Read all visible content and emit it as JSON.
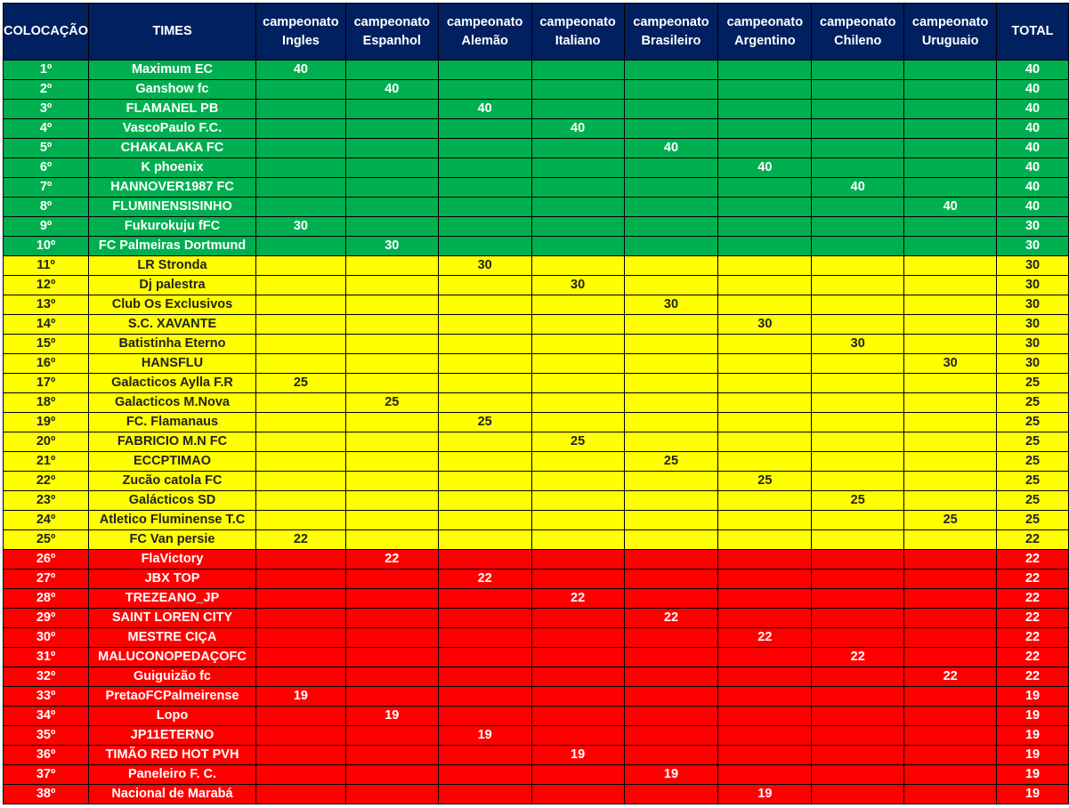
{
  "headers": [
    "COLOCAÇÃO",
    "TIMES",
    "campeonato Ingles",
    "campeonato Espanhol",
    "campeonato Alemão",
    "campeonato Italiano",
    "campeonato Brasileiro",
    "campeonato Argentino",
    "campeonato Chileno",
    "campeonato Uruguaio",
    "TOTAL"
  ],
  "colors": {
    "header": "#002060",
    "green": "#00B050",
    "yellow": "#FFFF00",
    "red": "#FF0000"
  },
  "rows": [
    {
      "pos": "1º",
      "team": "Maximum EC",
      "scores": [
        "40",
        "",
        "",
        "",
        "",
        "",
        "",
        ""
      ],
      "total": "40",
      "zone": "green"
    },
    {
      "pos": "2º",
      "team": "Ganshow fc",
      "scores": [
        "",
        "40",
        "",
        "",
        "",
        "",
        "",
        ""
      ],
      "total": "40",
      "zone": "green"
    },
    {
      "pos": "3º",
      "team": "FLAMANEL PB",
      "scores": [
        "",
        "",
        "40",
        "",
        "",
        "",
        "",
        ""
      ],
      "total": "40",
      "zone": "green"
    },
    {
      "pos": "4º",
      "team": "VascoPaulo F.C.",
      "scores": [
        "",
        "",
        "",
        "40",
        "",
        "",
        "",
        ""
      ],
      "total": "40",
      "zone": "green"
    },
    {
      "pos": "5º",
      "team": "CHAKALAKA FC",
      "scores": [
        "",
        "",
        "",
        "",
        "40",
        "",
        "",
        ""
      ],
      "total": "40",
      "zone": "green"
    },
    {
      "pos": "6º",
      "team": "K phoenix",
      "scores": [
        "",
        "",
        "",
        "",
        "",
        "40",
        "",
        ""
      ],
      "total": "40",
      "zone": "green"
    },
    {
      "pos": "7º",
      "team": "HANNOVER1987 FC",
      "scores": [
        "",
        "",
        "",
        "",
        "",
        "",
        "40",
        ""
      ],
      "total": "40",
      "zone": "green"
    },
    {
      "pos": "8º",
      "team": "FLUMINENSISINHO",
      "scores": [
        "",
        "",
        "",
        "",
        "",
        "",
        "",
        "40"
      ],
      "total": "40",
      "zone": "green"
    },
    {
      "pos": "9º",
      "team": "Fukurokuju fFC",
      "scores": [
        "30",
        "",
        "",
        "",
        "",
        "",
        "",
        ""
      ],
      "total": "30",
      "zone": "green"
    },
    {
      "pos": "10º",
      "team": "FC Palmeiras Dortmund",
      "scores": [
        "",
        "30",
        "",
        "",
        "",
        "",
        "",
        ""
      ],
      "total": "30",
      "zone": "green"
    },
    {
      "pos": "11º",
      "team": "LR Stronda",
      "scores": [
        "",
        "",
        "30",
        "",
        "",
        "",
        "",
        ""
      ],
      "total": "30",
      "zone": "yellow"
    },
    {
      "pos": "12º",
      "team": "Dj palestra",
      "scores": [
        "",
        "",
        "",
        "30",
        "",
        "",
        "",
        ""
      ],
      "total": "30",
      "zone": "yellow"
    },
    {
      "pos": "13º",
      "team": "Club Os Exclusivos",
      "scores": [
        "",
        "",
        "",
        "",
        "30",
        "",
        "",
        ""
      ],
      "total": "30",
      "zone": "yellow"
    },
    {
      "pos": "14º",
      "team": "S.C. XAVANTE",
      "scores": [
        "",
        "",
        "",
        "",
        "",
        "30",
        "",
        ""
      ],
      "total": "30",
      "zone": "yellow"
    },
    {
      "pos": "15º",
      "team": "Batistinha Eterno",
      "scores": [
        "",
        "",
        "",
        "",
        "",
        "",
        "30",
        ""
      ],
      "total": "30",
      "zone": "yellow"
    },
    {
      "pos": "16º",
      "team": "HANSFLU",
      "scores": [
        "",
        "",
        "",
        "",
        "",
        "",
        "",
        "30"
      ],
      "total": "30",
      "zone": "yellow"
    },
    {
      "pos": "17º",
      "team": "Galacticos Aylla F.R",
      "scores": [
        "25",
        "",
        "",
        "",
        "",
        "",
        "",
        ""
      ],
      "total": "25",
      "zone": "yellow"
    },
    {
      "pos": "18º",
      "team": "Galacticos M.Nova",
      "scores": [
        "",
        "25",
        "",
        "",
        "",
        "",
        "",
        ""
      ],
      "total": "25",
      "zone": "yellow"
    },
    {
      "pos": "19º",
      "team": "FC. Flamanaus",
      "scores": [
        "",
        "",
        "25",
        "",
        "",
        "",
        "",
        ""
      ],
      "total": "25",
      "zone": "yellow"
    },
    {
      "pos": "20º",
      "team": "FABRICIO M.N FC",
      "scores": [
        "",
        "",
        "",
        "25",
        "",
        "",
        "",
        ""
      ],
      "total": "25",
      "zone": "yellow"
    },
    {
      "pos": "21º",
      "team": "ECCPTIMAO",
      "scores": [
        "",
        "",
        "",
        "",
        "25",
        "",
        "",
        ""
      ],
      "total": "25",
      "zone": "yellow"
    },
    {
      "pos": "22º",
      "team": "Zucão catola FC",
      "scores": [
        "",
        "",
        "",
        "",
        "",
        "25",
        "",
        ""
      ],
      "total": "25",
      "zone": "yellow"
    },
    {
      "pos": "23º",
      "team": "Galácticos SD",
      "scores": [
        "",
        "",
        "",
        "",
        "",
        "",
        "25",
        ""
      ],
      "total": "25",
      "zone": "yellow"
    },
    {
      "pos": "24º",
      "team": "Atletico Fluminense T.C",
      "scores": [
        "",
        "",
        "",
        "",
        "",
        "",
        "",
        "25"
      ],
      "total": "25",
      "zone": "yellow"
    },
    {
      "pos": "25º",
      "team": "FC Van persie",
      "scores": [
        "22",
        "",
        "",
        "",
        "",
        "",
        "",
        ""
      ],
      "total": "22",
      "zone": "yellow"
    },
    {
      "pos": "26º",
      "team": "FlaVictory",
      "scores": [
        "",
        "22",
        "",
        "",
        "",
        "",
        "",
        ""
      ],
      "total": "22",
      "zone": "red"
    },
    {
      "pos": "27º",
      "team": "JBX TOP",
      "scores": [
        "",
        "",
        "22",
        "",
        "",
        "",
        "",
        ""
      ],
      "total": "22",
      "zone": "red"
    },
    {
      "pos": "28º",
      "team": "TREZEANO_JP",
      "scores": [
        "",
        "",
        "",
        "22",
        "",
        "",
        "",
        ""
      ],
      "total": "22",
      "zone": "red"
    },
    {
      "pos": "29º",
      "team": "SAINT LOREN CITY",
      "scores": [
        "",
        "",
        "",
        "",
        "22",
        "",
        "",
        ""
      ],
      "total": "22",
      "zone": "red"
    },
    {
      "pos": "30º",
      "team": "MESTRE CIÇA",
      "scores": [
        "",
        "",
        "",
        "",
        "",
        "22",
        "",
        ""
      ],
      "total": "22",
      "zone": "red"
    },
    {
      "pos": "31º",
      "team": "MALUCONOPEDAÇOFC",
      "scores": [
        "",
        "",
        "",
        "",
        "",
        "",
        "22",
        ""
      ],
      "total": "22",
      "zone": "red"
    },
    {
      "pos": "32º",
      "team": "Guiguizão fc",
      "scores": [
        "",
        "",
        "",
        "",
        "",
        "",
        "",
        "22"
      ],
      "total": "22",
      "zone": "red"
    },
    {
      "pos": "33º",
      "team": "PretaoFCPalmeirense",
      "scores": [
        "19",
        "",
        "",
        "",
        "",
        "",
        "",
        ""
      ],
      "total": "19",
      "zone": "red"
    },
    {
      "pos": "34º",
      "team": "Lopo",
      "scores": [
        "",
        "19",
        "",
        "",
        "",
        "",
        "",
        ""
      ],
      "total": "19",
      "zone": "red"
    },
    {
      "pos": "35º",
      "team": "JP11ETERNO",
      "scores": [
        "",
        "",
        "19",
        "",
        "",
        "",
        "",
        ""
      ],
      "total": "19",
      "zone": "red"
    },
    {
      "pos": "36º",
      "team": "TIMÃO RED HOT PVH",
      "scores": [
        "",
        "",
        "",
        "19",
        "",
        "",
        "",
        ""
      ],
      "total": "19",
      "zone": "red"
    },
    {
      "pos": "37º",
      "team": "Paneleiro F. C.",
      "scores": [
        "",
        "",
        "",
        "",
        "19",
        "",
        "",
        ""
      ],
      "total": "19",
      "zone": "red"
    },
    {
      "pos": "38º",
      "team": "Nacional de Marabá",
      "scores": [
        "",
        "",
        "",
        "",
        "",
        "19",
        "",
        ""
      ],
      "total": "19",
      "zone": "red"
    }
  ]
}
